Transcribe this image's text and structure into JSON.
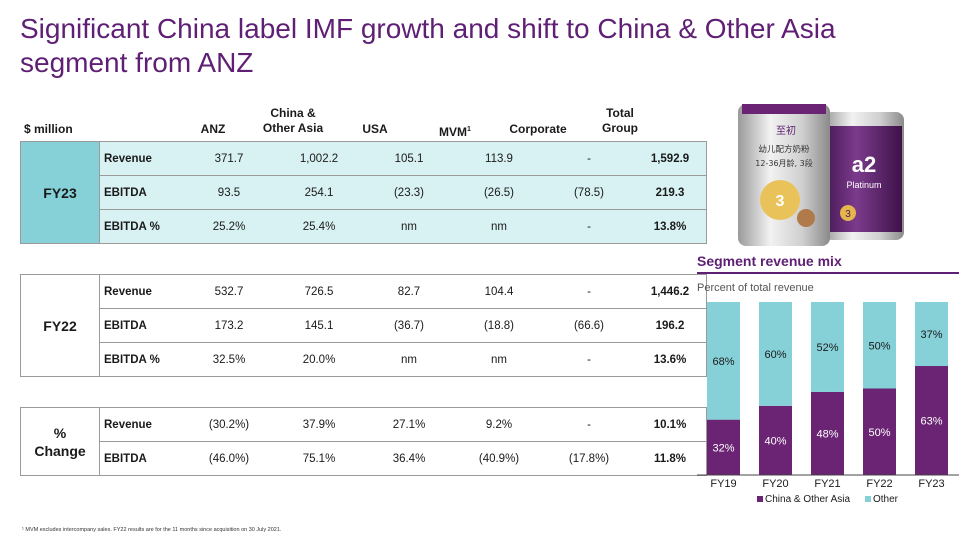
{
  "title_lines": [
    "Significant China label IMF growth and shift to China & Other Asia",
    "segment from ANZ"
  ],
  "table": {
    "unit_label": "$ million",
    "columns": [
      "ANZ",
      "China &\nOther Asia",
      "USA",
      "MVM",
      "Corporate",
      "Total\nGroup"
    ],
    "mvm_footnote_mark": "1",
    "groups": [
      {
        "label": "FY23",
        "rows": [
          {
            "metric": "Revenue",
            "values": [
              "371.7",
              "1,002.2",
              "105.1",
              "113.9",
              "-",
              "1,592.9"
            ]
          },
          {
            "metric": "EBITDA",
            "values": [
              "93.5",
              "254.1",
              "(23.3)",
              "(26.5)",
              "(78.5)",
              "219.3"
            ]
          },
          {
            "metric": "EBITDA %",
            "values": [
              "25.2%",
              "25.4%",
              "nm",
              "nm",
              "-",
              "13.8%"
            ]
          }
        ]
      },
      {
        "label": "FY22",
        "rows": [
          {
            "metric": "Revenue",
            "values": [
              "532.7",
              "726.5",
              "82.7",
              "104.4",
              "-",
              "1,446.2"
            ]
          },
          {
            "metric": "EBITDA",
            "values": [
              "173.2",
              "145.1",
              "(36.7)",
              "(18.8)",
              "(66.6)",
              "196.2"
            ]
          },
          {
            "metric": "EBITDA %",
            "values": [
              "32.5%",
              "20.0%",
              "nm",
              "nm",
              "-",
              "13.6%"
            ]
          }
        ]
      },
      {
        "label": "%\nChange",
        "rows": [
          {
            "metric": "Revenue",
            "values": [
              "(30.2%)",
              "37.9%",
              "27.1%",
              "9.2%",
              "-",
              "10.1%"
            ]
          },
          {
            "metric": "EBITDA",
            "values": [
              "(46.0%)",
              "75.1%",
              "36.4%",
              "(40.9%)",
              "(17.8%)",
              "11.8%"
            ]
          }
        ]
      }
    ]
  },
  "product_image": {
    "can1_text_top": "至初",
    "can1_text_mid": "幼儿配方奶粉",
    "can1_text_bot": "12-36月龄, 3段",
    "can2_brand": "a2",
    "can2_line": "Platinum",
    "stage": "3"
  },
  "chart_header": {
    "title": "Segment revenue mix",
    "subtitle": "Percent of total revenue"
  },
  "chart_data": {
    "type": "bar",
    "stacked": true,
    "categories": [
      "FY19",
      "FY20",
      "FY21",
      "FY22",
      "FY23"
    ],
    "series": [
      {
        "name": "China & Other Asia",
        "color": "#6b2473",
        "values": [
          32,
          40,
          48,
          50,
          63
        ],
        "labels": [
          "32%",
          "40%",
          "48%",
          "50%",
          "63%"
        ]
      },
      {
        "name": "Other",
        "color": "#86d1d8",
        "values": [
          68,
          60,
          52,
          50,
          37
        ],
        "labels": [
          "68%",
          "60%",
          "52%",
          "50%",
          "37%"
        ]
      }
    ],
    "ylim": [
      0,
      100
    ],
    "legend": "bottom"
  },
  "footnote": "¹ MVM excludes intercompany sales. FY22 results are for the 11 months since acquisition on 30 July 2021."
}
